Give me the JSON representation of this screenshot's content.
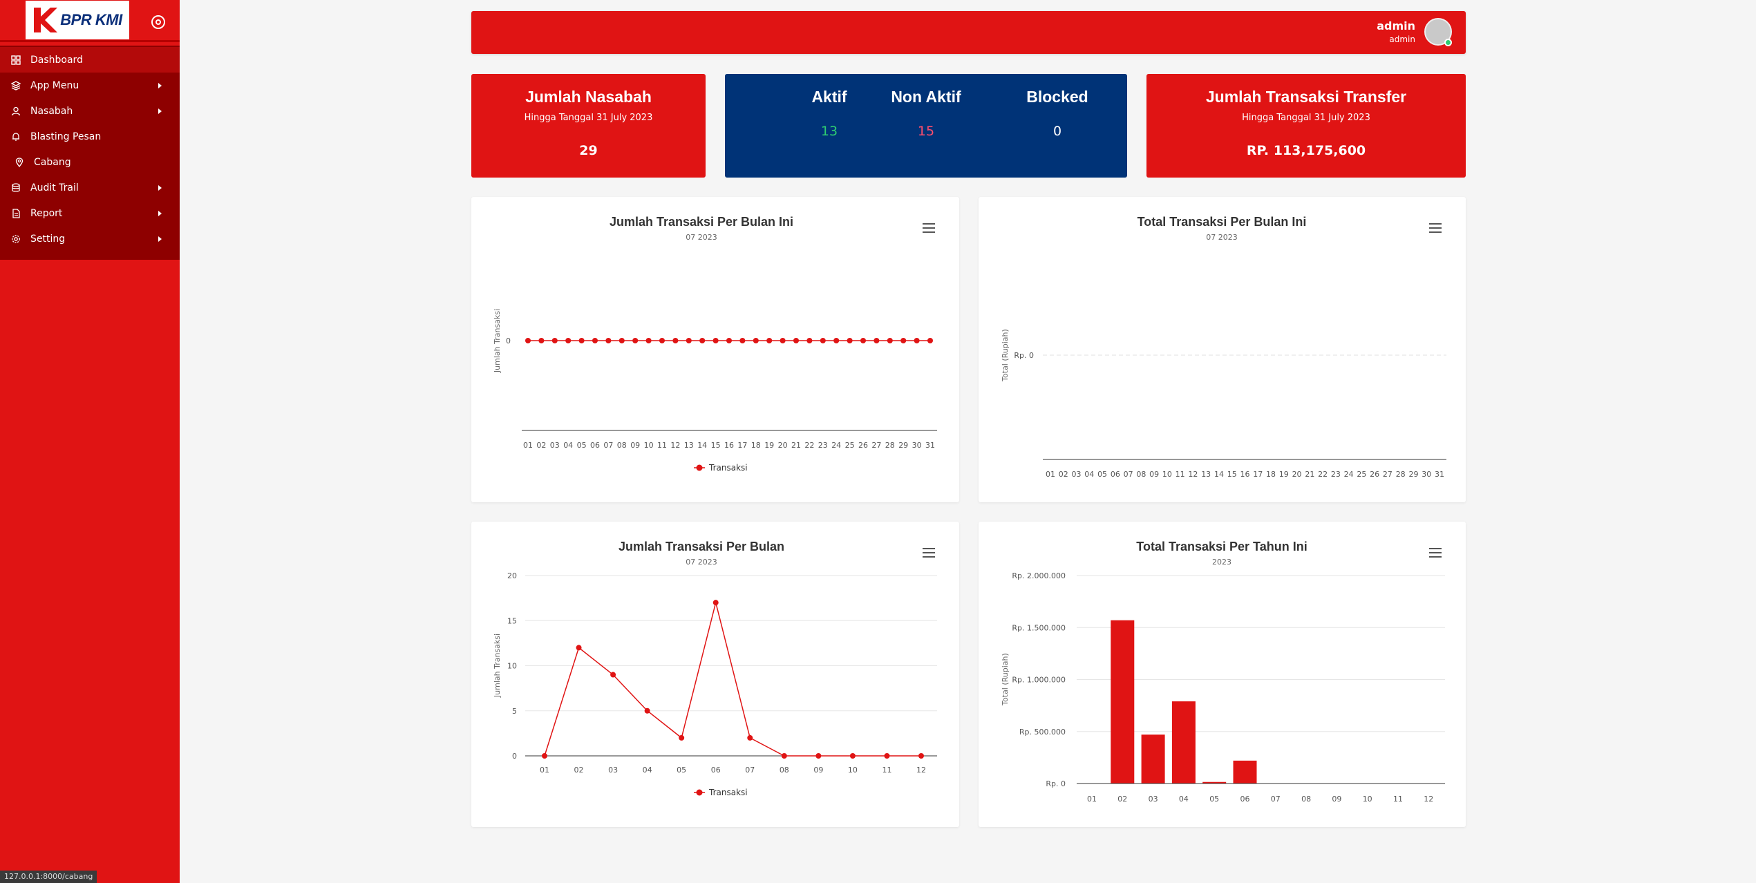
{
  "sidebar": {
    "brand": "BPR KMI",
    "items": [
      {
        "label": "Dashboard",
        "icon": "grid-icon",
        "active": true,
        "submenu": false
      },
      {
        "label": "App Menu",
        "icon": "layers-icon",
        "submenu": true
      },
      {
        "label": "Nasabah",
        "icon": "user-icon",
        "submenu": true
      },
      {
        "label": "Blasting Pesan",
        "icon": "bell-icon",
        "submenu": false
      },
      {
        "label": "Cabang",
        "icon": "location-pin-icon",
        "submenu": false
      },
      {
        "label": "Audit Trail",
        "icon": "database-icon",
        "submenu": true
      },
      {
        "label": "Report",
        "icon": "file-icon",
        "submenu": true
      },
      {
        "label": "Setting",
        "icon": "gear-icon",
        "submenu": true
      }
    ],
    "status_url": "127.0.0.1:8000/cabang"
  },
  "header": {
    "user_name": "admin",
    "user_role": "admin"
  },
  "stats": {
    "nasabah": {
      "title": "Jumlah Nasabah",
      "sub": "Hingga Tanggal 31 July 2023",
      "value": "29"
    },
    "status": {
      "aktif": {
        "label": "Aktif",
        "value": "13"
      },
      "non_aktif": {
        "label": "Non Aktif",
        "value": "15"
      },
      "blocked": {
        "label": "Blocked",
        "value": "0"
      }
    },
    "transfer": {
      "title": "Jumlah Transaksi Transfer",
      "sub": "Hingga Tanggal 31 July 2023",
      "value": "RP. 113,175,600"
    }
  },
  "colors": {
    "primary_red": "#e01414",
    "dark_red": "#8e0000",
    "navy": "#003377",
    "green": "#2ecc71",
    "pink": "#ff4d6d"
  },
  "chart_data": [
    {
      "type": "line",
      "title": "Jumlah Transaksi Per Bulan Ini",
      "subtitle": "07 2023",
      "ylabel": "Jumlah Transaksi",
      "x": [
        "01",
        "02",
        "03",
        "04",
        "05",
        "06",
        "07",
        "08",
        "09",
        "10",
        "11",
        "12",
        "13",
        "14",
        "15",
        "16",
        "17",
        "18",
        "19",
        "20",
        "21",
        "22",
        "23",
        "24",
        "25",
        "26",
        "27",
        "28",
        "29",
        "30",
        "31"
      ],
      "series": [
        {
          "name": "Transaksi",
          "values": [
            0,
            0,
            0,
            0,
            0,
            0,
            0,
            0,
            0,
            0,
            0,
            0,
            0,
            0,
            0,
            0,
            0,
            0,
            0,
            0,
            0,
            0,
            0,
            0,
            0,
            0,
            0,
            0,
            0,
            0,
            0
          ]
        }
      ],
      "yticks": [
        "0"
      ],
      "legend": "bottom"
    },
    {
      "type": "line",
      "title": "Total Transaksi Per Bulan Ini",
      "subtitle": "07 2023",
      "ylabel": "Total (Rupiah)",
      "x": [
        "01",
        "02",
        "03",
        "04",
        "05",
        "06",
        "07",
        "08",
        "09",
        "10",
        "11",
        "12",
        "13",
        "14",
        "15",
        "16",
        "17",
        "18",
        "19",
        "20",
        "21",
        "22",
        "23",
        "24",
        "25",
        "26",
        "27",
        "28",
        "29",
        "30",
        "31"
      ],
      "series": [],
      "yticks": [
        "Rp. 0"
      ],
      "legend": "none"
    },
    {
      "type": "line",
      "title": "Jumlah Transaksi Per Bulan",
      "subtitle": "07 2023",
      "ylabel": "Jumlah Transaksi",
      "x": [
        "01",
        "02",
        "03",
        "04",
        "05",
        "06",
        "07",
        "08",
        "09",
        "10",
        "11",
        "12"
      ],
      "series": [
        {
          "name": "Transaksi",
          "values": [
            0,
            12,
            9,
            5,
            2,
            17,
            2,
            0,
            0,
            0,
            0,
            0
          ]
        }
      ],
      "ylim": [
        0,
        20
      ],
      "yticks": [
        "0",
        "5",
        "10",
        "15",
        "20"
      ],
      "legend": "bottom"
    },
    {
      "type": "bar",
      "title": "Total Transaksi Per Tahun Ini",
      "subtitle": "2023",
      "ylabel": "Total (Rupiah)",
      "categories": [
        "01",
        "02",
        "03",
        "04",
        "05",
        "06",
        "07",
        "08",
        "09",
        "10",
        "11",
        "12"
      ],
      "values": [
        0,
        1570000,
        470000,
        790000,
        15000,
        220000,
        0,
        0,
        0,
        0,
        0,
        0
      ],
      "ylim": [
        0,
        2000000
      ],
      "yticks": [
        "Rp. 0",
        "Rp. 500.000",
        "Rp. 1.000.000",
        "Rp. 1.500.000",
        "Rp. 2.000.000"
      ],
      "legend": "none"
    }
  ]
}
